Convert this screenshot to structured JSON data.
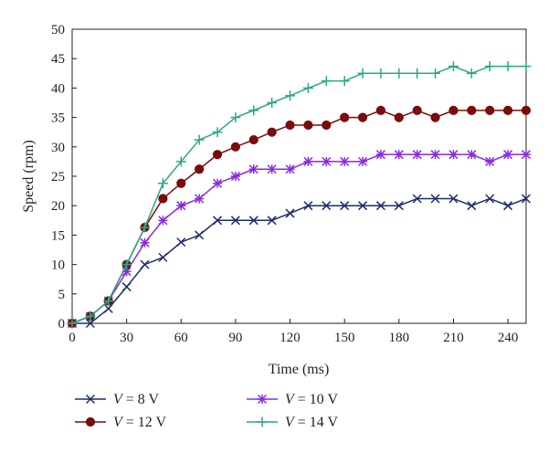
{
  "chart_data": {
    "type": "line",
    "title": "",
    "xlabel": "Time (ms)",
    "ylabel": "Speed (rpm)",
    "xlim": [
      0,
      250
    ],
    "ylim": [
      0,
      50
    ],
    "xticks": [
      "0",
      "30",
      "60",
      "90",
      "120",
      "150",
      "180",
      "210",
      "240"
    ],
    "yticks": [
      "0",
      "5",
      "10",
      "15",
      "20",
      "25",
      "30",
      "35",
      "40",
      "45",
      "50"
    ],
    "grid": false,
    "legend_position": "bottom",
    "x": [
      0,
      10,
      20,
      30,
      40,
      50,
      60,
      70,
      80,
      90,
      100,
      110,
      120,
      130,
      140,
      150,
      160,
      170,
      180,
      190,
      200,
      210,
      220,
      230,
      240,
      250
    ],
    "series": [
      {
        "name": "V = 8 V",
        "legend": {
          "prefix": "V",
          "rest": " = 8 V"
        },
        "color": "#1f2a6b",
        "marker": "x",
        "values": [
          0,
          0,
          2.5,
          6.2,
          10,
          11.2,
          13.8,
          15,
          17.5,
          17.5,
          17.5,
          17.5,
          18.7,
          20,
          20,
          20,
          20,
          20,
          20,
          21.2,
          21.2,
          21.2,
          20,
          21.2,
          20,
          21.2
        ]
      },
      {
        "name": "V = 10 V",
        "legend": {
          "prefix": "V",
          "rest": " = 10 V"
        },
        "color": "#8a2be2",
        "marker": "asterisk",
        "values": [
          0,
          1.2,
          3.8,
          8.8,
          13.7,
          17.5,
          20,
          21.2,
          23.8,
          25,
          26.2,
          26.2,
          26.2,
          27.5,
          27.5,
          27.5,
          27.5,
          28.7,
          28.7,
          28.7,
          28.7,
          28.7,
          28.7,
          27.5,
          28.7,
          28.7
        ]
      },
      {
        "name": "V = 12 V",
        "legend": {
          "prefix": "V",
          "rest": " = 12 V"
        },
        "color": "#7a0c0c",
        "marker": "circle",
        "values": [
          0,
          1.2,
          3.8,
          10,
          16.3,
          21.2,
          23.8,
          26.2,
          28.7,
          30,
          31.2,
          32.5,
          33.7,
          33.7,
          33.7,
          35,
          35,
          36.2,
          35,
          36.2,
          35,
          36.2,
          36.2,
          36.2,
          36.2,
          36.2
        ]
      },
      {
        "name": "V = 14 V",
        "legend": {
          "prefix": "V",
          "rest": " = 14 V"
        },
        "color": "#2aa889",
        "marker": "plus",
        "values": [
          0,
          1.2,
          3.8,
          10,
          16.3,
          23.8,
          27.5,
          31.2,
          32.5,
          35,
          36.2,
          37.5,
          38.7,
          40,
          41.2,
          41.2,
          42.5,
          42.5,
          42.5,
          42.5,
          42.5,
          43.7,
          42.5,
          43.7,
          43.7,
          43.7
        ]
      }
    ]
  }
}
